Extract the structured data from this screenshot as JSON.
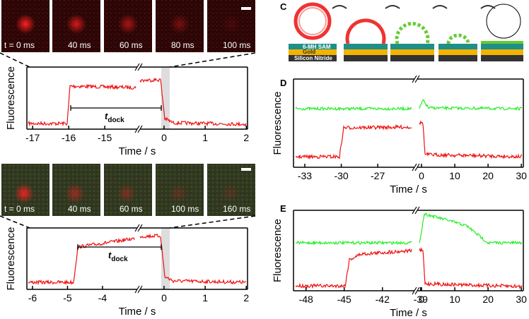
{
  "panels": {
    "A": {
      "label": "A",
      "frames": [
        "t = 0 ms",
        "40 ms",
        "60 ms",
        "80 ms",
        "100 ms"
      ],
      "ylabel": "Fluorescence",
      "xlabel": "Time / s",
      "interval": {
        "main": "t",
        "sub": "dock"
      },
      "segments": [
        {
          "xlim": [
            -17.16,
            -14.14
          ],
          "xticks": [
            -17,
            -16,
            -15
          ]
        },
        {
          "xlim": [
            -0.55,
            2.03
          ],
          "xticks": [
            0,
            1,
            2
          ]
        }
      ]
    },
    "B": {
      "label": "B",
      "frames": [
        "t = 0 ms",
        "40 ms",
        "60 ms",
        "100 ms",
        "160 ms"
      ],
      "ylabel": "Fluorescence",
      "xlabel": "Time / s",
      "interval": {
        "main": "t",
        "sub": "dock"
      },
      "segments": [
        {
          "xlim": [
            -6.16,
            -3.05
          ],
          "xticks": [
            -6,
            -5,
            -4
          ]
        },
        {
          "xlim": [
            -0.55,
            2.03
          ],
          "xticks": [
            0,
            1,
            2
          ]
        }
      ]
    },
    "C": {
      "label": "C",
      "layers": [
        "6-MH SAM",
        "Gold",
        "Silicon Nitride"
      ]
    },
    "D": {
      "label": "D",
      "ylabel": "Fluorescence",
      "xlabel": "Time / s",
      "segments": [
        {
          "xlim": [
            -33.93,
            -24.1
          ],
          "xticks": [
            -33,
            -30,
            -27
          ]
        },
        {
          "xlim": [
            -0.85,
            30.6
          ],
          "xticks": [
            0,
            10,
            20,
            30
          ]
        }
      ]
    },
    "E": {
      "label": "E",
      "ylabel": "Fluorescence",
      "xlabel": "Time / s",
      "segments": [
        {
          "xlim": [
            -48.98,
            -39.6
          ],
          "xticks": [
            -48,
            -45,
            -42,
            -39
          ]
        },
        {
          "xlim": [
            -0.85,
            30.6
          ],
          "xticks": [
            0,
            10,
            20,
            30
          ]
        }
      ]
    }
  }
}
